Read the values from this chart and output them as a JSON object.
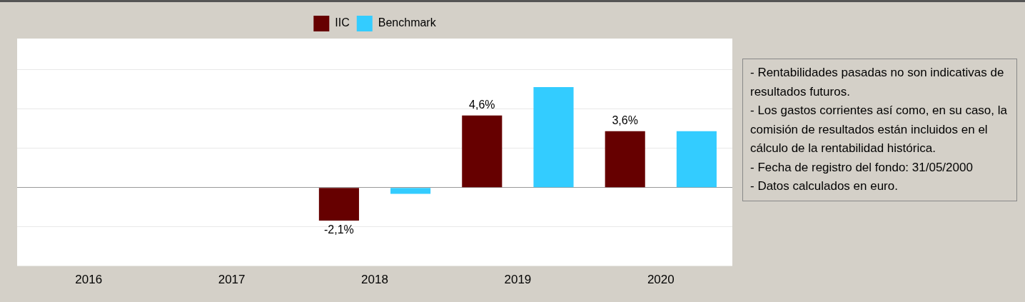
{
  "chart_data": {
    "type": "bar",
    "categories": [
      "2016",
      "2017",
      "2018",
      "2019",
      "2020"
    ],
    "series": [
      {
        "name": "IIC",
        "color": "#660000",
        "values": [
          null,
          null,
          -2.1,
          4.6,
          3.6
        ],
        "value_labels": [
          null,
          null,
          "-2,1%",
          "4,6%",
          "3,6%"
        ]
      },
      {
        "name": "Benchmark",
        "color": "#33ccff",
        "values": [
          null,
          null,
          -0.4,
          6.4,
          3.6
        ]
      }
    ],
    "ylim": [
      -5,
      9.5
    ],
    "yticks": [
      {
        "value": -2.5,
        "label": null
      },
      {
        "value": 0,
        "label": null
      },
      {
        "value": 2.5,
        "label": null
      },
      {
        "value": 5,
        "label": null
      },
      {
        "value": 7.5,
        "label": null
      }
    ],
    "tick_labels": "x",
    "grid": "y",
    "legend": "top",
    "annotations": [
      "- Rentabilidades pasadas no son indicativas de resultados futuros.",
      "- Los gastos corrientes así como, en su caso, la comisión de resultados están incluidos en el cálculo de la rentabilidad histórica.",
      "- Fecha de registro del fondo: 31/05/2000",
      "- Datos calculados en euro."
    ]
  }
}
